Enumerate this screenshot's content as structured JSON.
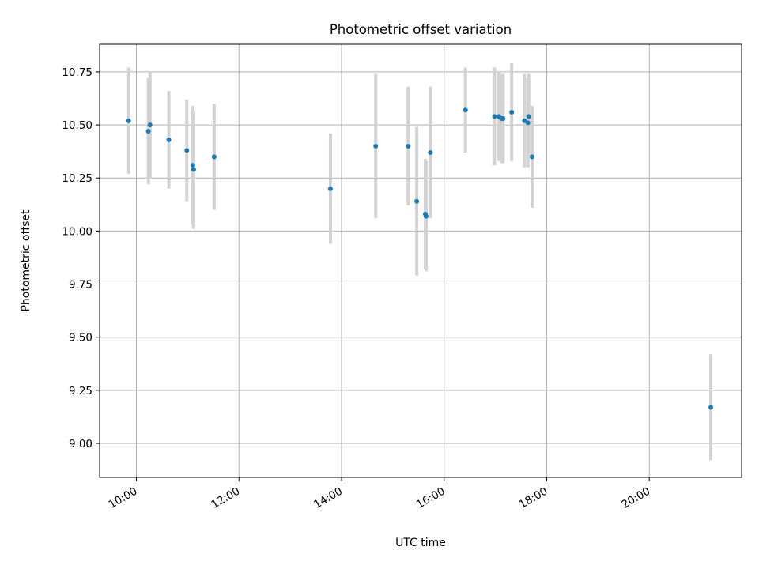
{
  "chart_data": {
    "type": "scatter",
    "title": "Photometric offset variation",
    "xlabel": "UTC time",
    "ylabel": "Photometric offset",
    "grid": true,
    "xlim": [
      "09:17",
      "21:48"
    ],
    "ylim": [
      8.84,
      10.88
    ],
    "xticks": [
      "10:00",
      "12:00",
      "14:00",
      "16:00",
      "18:00",
      "20:00"
    ],
    "yticks": [
      "9.00",
      "9.25",
      "9.50",
      "9.75",
      "10.00",
      "10.25",
      "10.50",
      "10.75"
    ],
    "colors": {
      "point": "#1f77b4",
      "errorbar": "#d3d3d3",
      "grid": "#b0b0b0"
    },
    "points": [
      {
        "x": "09:51",
        "y": 10.52,
        "err": 0.25
      },
      {
        "x": "10:14",
        "y": 10.47,
        "err": 0.25
      },
      {
        "x": "10:16",
        "y": 10.5,
        "err": 0.25
      },
      {
        "x": "10:38",
        "y": 10.43,
        "err": 0.23
      },
      {
        "x": "10:59",
        "y": 10.38,
        "err": 0.24
      },
      {
        "x": "11:06",
        "y": 10.31,
        "err": 0.28
      },
      {
        "x": "11:07",
        "y": 10.29,
        "err": 0.28
      },
      {
        "x": "11:31",
        "y": 10.35,
        "err": 0.25
      },
      {
        "x": "13:47",
        "y": 10.2,
        "err": 0.26
      },
      {
        "x": "14:40",
        "y": 10.4,
        "err": 0.34
      },
      {
        "x": "15:18",
        "y": 10.4,
        "err": 0.28
      },
      {
        "x": "15:28",
        "y": 10.14,
        "err": 0.35
      },
      {
        "x": "15:38",
        "y": 10.08,
        "err": 0.26
      },
      {
        "x": "15:39",
        "y": 10.07,
        "err": 0.26
      },
      {
        "x": "15:44",
        "y": 10.37,
        "err": 0.31
      },
      {
        "x": "16:25",
        "y": 10.57,
        "err": 0.2
      },
      {
        "x": "16:59",
        "y": 10.54,
        "err": 0.23
      },
      {
        "x": "17:04",
        "y": 10.54,
        "err": 0.21
      },
      {
        "x": "17:07",
        "y": 10.53,
        "err": 0.21
      },
      {
        "x": "17:09",
        "y": 10.53,
        "err": 0.21
      },
      {
        "x": "17:19",
        "y": 10.56,
        "err": 0.23
      },
      {
        "x": "17:34",
        "y": 10.52,
        "err": 0.22
      },
      {
        "x": "17:38",
        "y": 10.51,
        "err": 0.21
      },
      {
        "x": "17:39",
        "y": 10.54,
        "err": 0.2
      },
      {
        "x": "17:43",
        "y": 10.35,
        "err": 0.24
      },
      {
        "x": "21:12",
        "y": 9.17,
        "err": 0.25
      }
    ]
  }
}
